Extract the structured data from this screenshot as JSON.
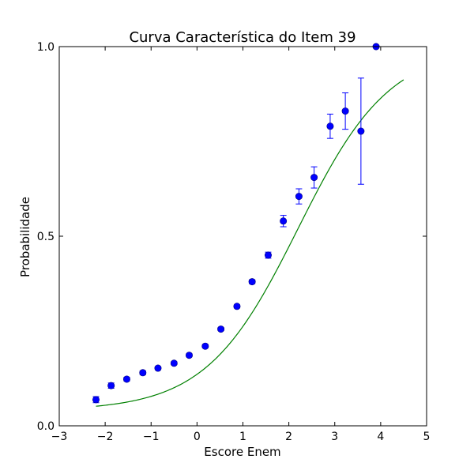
{
  "chart_data": {
    "type": "scatter",
    "title": "Curva Característica do Item 39",
    "xlabel": "Escore Enem",
    "ylabel": "Probabilidade",
    "xlim": [
      -3,
      5
    ],
    "ylim": [
      0.0,
      1.0
    ],
    "xticks": [
      -3,
      -2,
      -1,
      0,
      1,
      2,
      3,
      4,
      5
    ],
    "xtick_labels": [
      "−3",
      "−2",
      "−1",
      "0",
      "1",
      "2",
      "3",
      "4",
      "5"
    ],
    "yticks": [
      0.0,
      0.5,
      1.0
    ],
    "ytick_labels": [
      "0.0",
      "0.5",
      "1.0"
    ],
    "grid": false,
    "colors": {
      "points": "#0000ff",
      "curve": "#008000"
    },
    "series": [
      {
        "kind": "points-with-errorbars",
        "x": [
          -2.2,
          -1.87,
          -1.53,
          -1.18,
          -0.85,
          -0.5,
          -0.17,
          0.18,
          0.52,
          0.87,
          1.2,
          1.55,
          1.88,
          2.22,
          2.55,
          2.9,
          3.23,
          3.57,
          3.9
        ],
        "y": [
          0.069,
          0.106,
          0.123,
          0.14,
          0.152,
          0.165,
          0.186,
          0.21,
          0.255,
          0.315,
          0.38,
          0.45,
          0.54,
          0.605,
          0.655,
          0.79,
          0.83,
          0.777,
          1.0
        ],
        "err": [
          0.008,
          0.007,
          0.005,
          0.005,
          0.004,
          0.004,
          0.004,
          0.004,
          0.004,
          0.004,
          0.005,
          0.008,
          0.015,
          0.02,
          0.028,
          0.032,
          0.048,
          0.14,
          0.0
        ]
      },
      {
        "kind": "line",
        "model": {
          "c": 0.04,
          "a": 1.0,
          "b": 2.2,
          "D": 1.0
        },
        "x_range": [
          -2.2,
          4.5
        ]
      }
    ]
  }
}
